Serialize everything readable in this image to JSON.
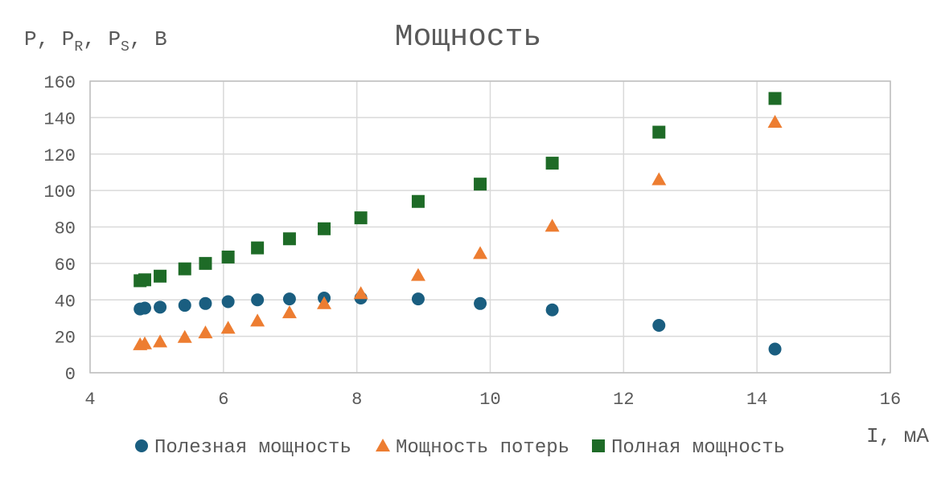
{
  "chart_data": {
    "type": "scatter",
    "title": "Мощность",
    "ylabel": {
      "base": "P, P",
      "sub1": "R",
      "mid": ", P",
      "sub2": "S",
      "end": ", В"
    },
    "xlabel": "I, мА",
    "xlim": [
      4,
      16
    ],
    "ylim": [
      0,
      160
    ],
    "xticks": [
      4,
      6,
      8,
      10,
      12,
      14,
      16
    ],
    "yticks": [
      0,
      20,
      40,
      60,
      80,
      100,
      120,
      140,
      160
    ],
    "grid": true,
    "legend_position": "bottom",
    "series": [
      {
        "name": "Полезная мощность",
        "marker": "circle",
        "color": "#1a5e80",
        "x": [
          4.75,
          4.82,
          5.05,
          5.42,
          5.73,
          6.07,
          6.51,
          6.99,
          7.51,
          8.06,
          8.92,
          9.85,
          10.93,
          12.53,
          14.27
        ],
        "y": [
          35,
          35.5,
          36,
          37,
          38,
          39,
          40,
          40.5,
          41,
          41,
          40.5,
          38,
          34.5,
          26,
          13
        ]
      },
      {
        "name": "Мощность потерь",
        "marker": "triangle",
        "color": "#ed7d31",
        "x": [
          4.75,
          4.82,
          5.05,
          5.42,
          5.73,
          6.07,
          6.51,
          6.99,
          7.51,
          8.06,
          8.92,
          9.85,
          10.93,
          12.53,
          14.27
        ],
        "y": [
          15.5,
          16,
          17,
          19.5,
          22,
          24.5,
          28.5,
          33,
          38,
          43.5,
          53.5,
          65.5,
          80.5,
          106,
          137.5
        ]
      },
      {
        "name": "Полная мощность",
        "marker": "square",
        "color": "#1e6b27",
        "x": [
          4.75,
          4.82,
          5.05,
          5.42,
          5.73,
          6.07,
          6.51,
          6.99,
          7.51,
          8.06,
          8.92,
          9.85,
          10.93,
          12.53,
          14.27
        ],
        "y": [
          50.5,
          51,
          53,
          57,
          60,
          63.5,
          68.5,
          73.5,
          79,
          85,
          94,
          103.5,
          115,
          132,
          150.5
        ]
      }
    ]
  }
}
